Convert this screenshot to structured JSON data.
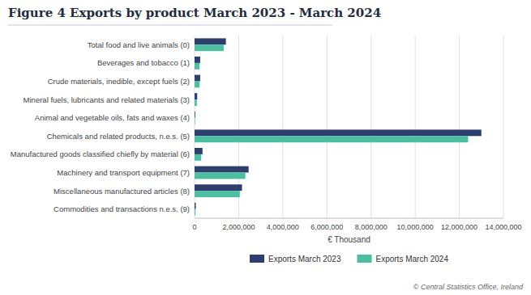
{
  "chart_data": {
    "type": "bar",
    "orientation": "horizontal",
    "title": "Figure 4 Exports by product March 2023 - March 2024",
    "categories": [
      "Total food and live animals (0)",
      "Beverages and tobacco (1)",
      "Crude materials, inedible, except fuels (2)",
      "Mineral fuels, lubricants and related materials (3)",
      "Animal and vegetable oils, fats and waxes (4)",
      "Chemicals and related products, n.e.s. (5)",
      "Manufactured goods classified chiefly by material (6)",
      "Machinery and transport equipment (7)",
      "Miscellaneous manufactured articles (8)",
      "Commodities and transactions n.e.s. (9)"
    ],
    "series": [
      {
        "name": "Exports March 2023",
        "color": "#2e3f6e",
        "values": [
          1420000,
          255000,
          255000,
          120000,
          30000,
          13000000,
          360000,
          2450000,
          2150000,
          55000
        ]
      },
      {
        "name": "Exports March 2024",
        "color": "#4bbfa0",
        "values": [
          1320000,
          225000,
          225000,
          100000,
          22000,
          12400000,
          300000,
          2300000,
          2050000,
          42000
        ]
      }
    ],
    "xlabel": "€ Thousand",
    "xlim": [
      0,
      14000000
    ],
    "xticks": [
      0,
      {
        "value": 2000000,
        "label": "2,000,000"
      },
      {
        "value": 4000000,
        "label": "4,000,000"
      },
      {
        "value": 6000000,
        "label": "6,000,000"
      },
      {
        "value": 8000000,
        "label": "8,000,000"
      },
      {
        "value": 10000000,
        "label": "10,000,000"
      },
      {
        "value": 12000000,
        "label": "12,000,000"
      },
      {
        "value": 14000000,
        "label": "14,000,000"
      }
    ],
    "grid": true,
    "legend": "bottom",
    "annotations": [
      "© Central Statistics Office, Ireland"
    ]
  }
}
